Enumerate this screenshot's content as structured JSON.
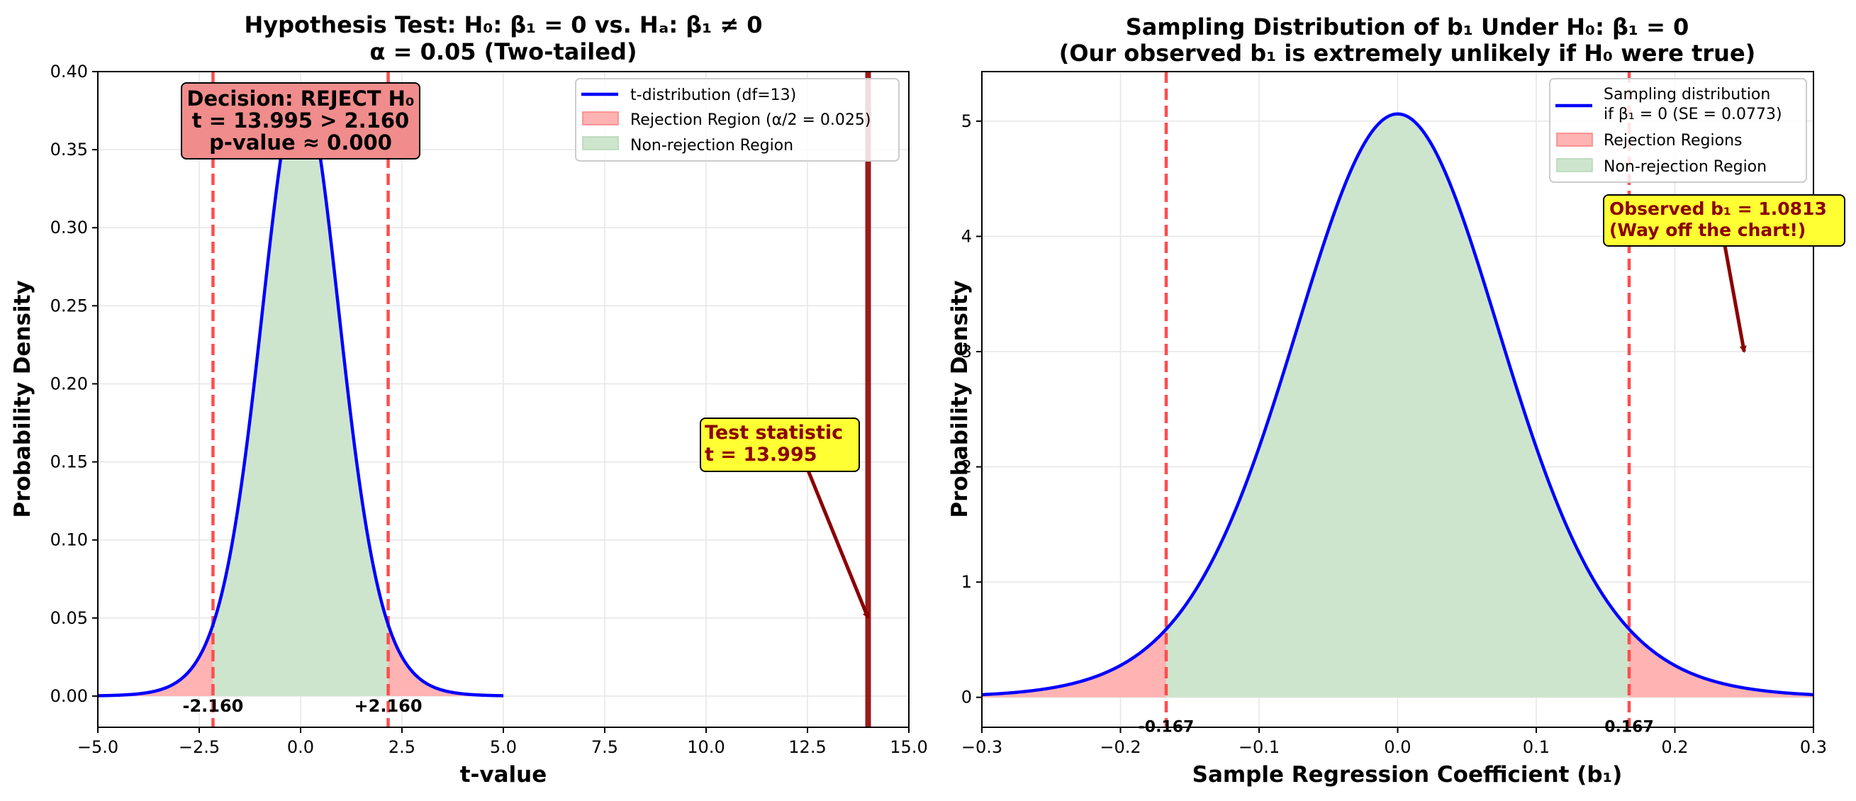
{
  "chart_data": [
    {
      "type": "line",
      "title_line1": "Hypothesis Test: H₀: β₁ = 0 vs. Hₐ: β₁ ≠ 0",
      "title_line2": "α = 0.05 (Two-tailed)",
      "xlabel": "t-value",
      "ylabel": "Probability Density",
      "xlim": [
        -5.0,
        15.0
      ],
      "ylim": [
        -0.02,
        0.4
      ],
      "xticks": [
        -5.0,
        -2.5,
        0.0,
        2.5,
        5.0,
        7.5,
        10.0,
        12.5,
        15.0
      ],
      "xtick_labels": [
        "−5.0",
        "−2.5",
        "0.0",
        "2.5",
        "5.0",
        "7.5",
        "10.0",
        "12.5",
        "15.0"
      ],
      "yticks": [
        0.0,
        0.05,
        0.1,
        0.15,
        0.2,
        0.25,
        0.3,
        0.35,
        0.4
      ],
      "ytick_labels": [
        "0.00",
        "0.05",
        "0.10",
        "0.15",
        "0.20",
        "0.25",
        "0.30",
        "0.35",
        "0.40"
      ],
      "grid": true,
      "distribution": "student-t",
      "df": 13,
      "curve_range": [
        -5.0,
        5.0
      ],
      "critical_values": [
        -2.16,
        2.16
      ],
      "critical_labels": [
        "-2.160",
        "+2.160"
      ],
      "test_statistic": 13.995,
      "legend": [
        "t-distribution (df=13)",
        "Rejection Region (α/2 = 0.025)",
        "Non-rejection Region"
      ],
      "legend_position": "upper right",
      "decision_box": [
        "Decision: REJECT H₀",
        "t = 13.995 > 2.160",
        "p-value ≈ 0.000"
      ],
      "annotation": {
        "lines": [
          "Test statistic",
          "t = 13.995"
        ],
        "text_at": [
          10.0,
          0.16
        ],
        "arrow_to": [
          13.995,
          0.05
        ]
      }
    },
    {
      "type": "line",
      "title_line1": "Sampling Distribution of b₁ Under H₀: β₁ = 0",
      "title_line2": "(Our observed b₁ is extremely unlikely if H₀ were true)",
      "xlabel": "Sample Regression Coefficient (b₁)",
      "ylabel": "Probability Density",
      "xlim": [
        -0.3,
        0.3
      ],
      "ylim": [
        -0.26,
        5.43
      ],
      "xticks": [
        -0.3,
        -0.2,
        -0.1,
        0.0,
        0.1,
        0.2,
        0.3
      ],
      "xtick_labels": [
        "−0.3",
        "−0.2",
        "−0.1",
        "0.0",
        "0.1",
        "0.2",
        "0.3"
      ],
      "yticks": [
        0,
        1,
        2,
        3,
        4,
        5
      ],
      "ytick_labels": [
        "0",
        "1",
        "2",
        "3",
        "4",
        "5"
      ],
      "grid": true,
      "distribution": "scaled-t",
      "df": 13,
      "se": 0.0773,
      "curve_range": [
        -0.3,
        0.3
      ],
      "critical_values": [
        -0.167,
        0.167
      ],
      "critical_labels": [
        "-0.167",
        "0.167"
      ],
      "legend": [
        "Sampling distribution",
        "if β₁ = 0 (SE = 0.0773)",
        "Rejection Regions",
        "Non-rejection Region"
      ],
      "legend_position": "upper right",
      "annotation": {
        "lines": [
          "Observed b₁ = 1.0813",
          "(Way off the chart!)"
        ],
        "text_at": [
          0.15,
          4.1
        ],
        "arrow_to": [
          0.25,
          3.0
        ]
      }
    }
  ],
  "colors": {
    "curve": "#0000ff",
    "critical_line": "#ff4d4d",
    "rejection_fill": "#ffb3b3",
    "nonrejection_fill": "#cde5cd",
    "test_stat_line": "#9b1b1b",
    "decision_box_fill": "#f08c8c",
    "annotation_box_fill": "#ffff33",
    "annotation_text": "#8b0000",
    "grid": "#e6e6e6"
  }
}
